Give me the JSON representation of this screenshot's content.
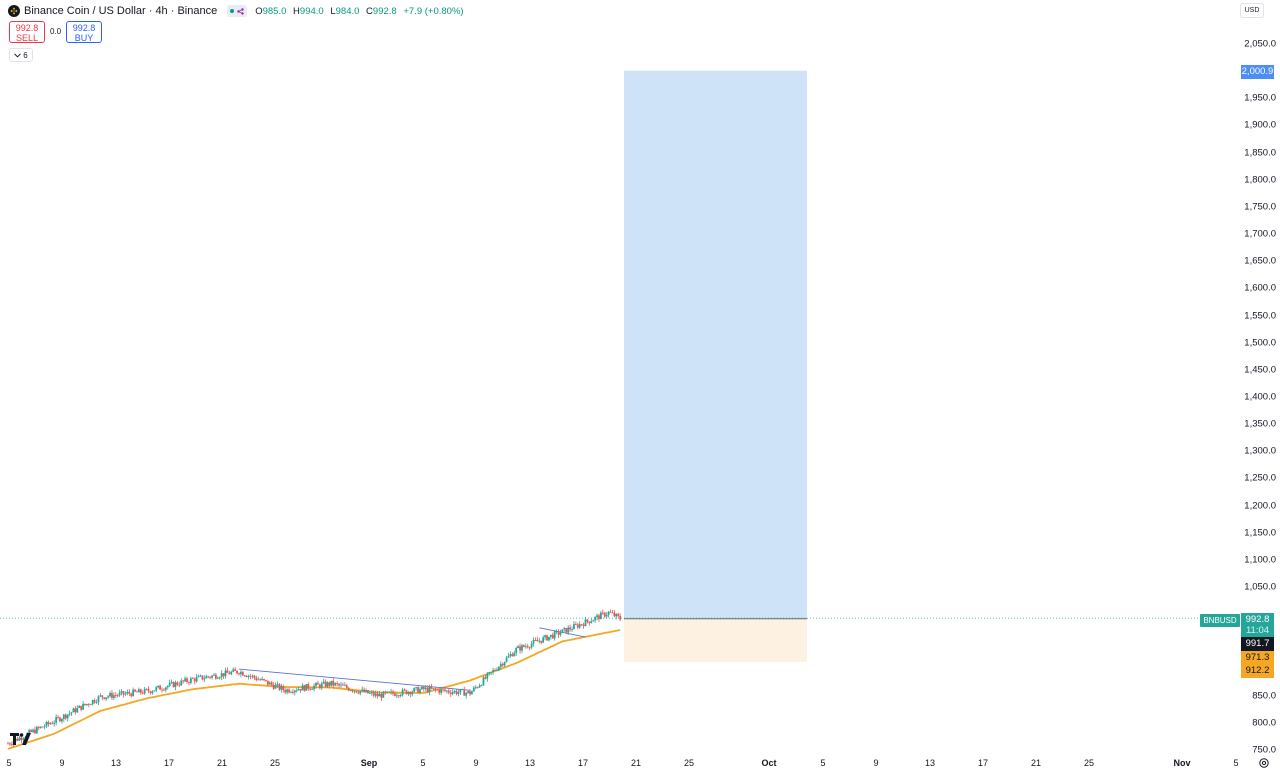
{
  "header": {
    "title": "Binance Coin / US Dollar · 4h · Binance",
    "ohlc": [
      {
        "key": "O",
        "value": "985.0"
      },
      {
        "key": "H",
        "value": "994.0"
      },
      {
        "key": "L",
        "value": "984.0"
      },
      {
        "key": "C",
        "value": "992.8"
      }
    ],
    "change": "+7.9 (+0.80%)"
  },
  "trade": {
    "sell_price": "992.8",
    "sell_label": "SELL",
    "spread": "0.0",
    "buy_price": "992.8",
    "buy_label": "BUY"
  },
  "indicators_toggle": "6",
  "currency": "USD",
  "colors": {
    "up": "#26a69a",
    "down": "#ef5350",
    "ma": "#f5a623",
    "target_zone": "#cfe3f8",
    "stop_zone": "#fdf1e1",
    "trendline": "#5b6fd6",
    "accent_blue": "#4c8df6"
  },
  "price_axis": {
    "ticks": [
      "2,050.0",
      "1,950.0",
      "1,900.0",
      "1,850.0",
      "1,800.0",
      "1,750.0",
      "1,700.0",
      "1,650.0",
      "1,600.0",
      "1,550.0",
      "1,500.0",
      "1,450.0",
      "1,400.0",
      "1,350.0",
      "1,300.0",
      "1,250.0",
      "1,200.0",
      "1,150.0",
      "1,100.0",
      "1,050.0",
      "850.0",
      "800.0",
      "750.0"
    ],
    "tick_values": [
      2050,
      1950,
      1900,
      1850,
      1800,
      1750,
      1700,
      1650,
      1600,
      1550,
      1500,
      1450,
      1400,
      1350,
      1300,
      1250,
      1200,
      1150,
      1100,
      1050,
      850,
      800,
      750
    ],
    "range": [
      750,
      2065
    ]
  },
  "price_labels": {
    "target": "2,000.9",
    "symbol": "BNBUSD",
    "last": "992.8",
    "countdown": "11:04",
    "entry": "991.7",
    "ma": "971.3",
    "stop": "912.2"
  },
  "time_axis": {
    "labels": [
      {
        "text": "5",
        "bold": false
      },
      {
        "text": "9",
        "bold": false
      },
      {
        "text": "13",
        "bold": false
      },
      {
        "text": "17",
        "bold": false
      },
      {
        "text": "21",
        "bold": false
      },
      {
        "text": "25",
        "bold": false
      },
      {
        "text": "Sep",
        "bold": true
      },
      {
        "text": "5",
        "bold": false
      },
      {
        "text": "9",
        "bold": false
      },
      {
        "text": "13",
        "bold": false
      },
      {
        "text": "17",
        "bold": false
      },
      {
        "text": "21",
        "bold": false
      },
      {
        "text": "25",
        "bold": false
      },
      {
        "text": "Oct",
        "bold": true
      },
      {
        "text": "5",
        "bold": false
      },
      {
        "text": "9",
        "bold": false
      },
      {
        "text": "13",
        "bold": false
      },
      {
        "text": "17",
        "bold": false
      },
      {
        "text": "21",
        "bold": false
      },
      {
        "text": "25",
        "bold": false
      },
      {
        "text": "Nov",
        "bold": true
      },
      {
        "text": "5",
        "bold": false
      }
    ]
  },
  "position_tool": {
    "entry": 991.7,
    "target": 2000.9,
    "stop": 912.2
  },
  "price_path": [
    {
      "day": 0,
      "price": 762
    },
    {
      "day": 4,
      "price": 803
    },
    {
      "day": 8,
      "price": 848
    },
    {
      "day": 12,
      "price": 858
    },
    {
      "day": 16,
      "price": 880
    },
    {
      "day": 20,
      "price": 895
    },
    {
      "day": 24,
      "price": 860
    },
    {
      "day": 28,
      "price": 872
    },
    {
      "day": 32,
      "price": 850
    },
    {
      "day": 36,
      "price": 862
    },
    {
      "day": 40,
      "price": 855
    },
    {
      "day": 44,
      "price": 935
    },
    {
      "day": 48,
      "price": 968
    },
    {
      "day": 52,
      "price": 1003
    },
    {
      "day": 53,
      "price": 992
    }
  ],
  "ma_path": [
    {
      "day": 0,
      "price": 752
    },
    {
      "day": 4,
      "price": 780
    },
    {
      "day": 8,
      "price": 822
    },
    {
      "day": 12,
      "price": 845
    },
    {
      "day": 16,
      "price": 862
    },
    {
      "day": 20,
      "price": 872
    },
    {
      "day": 24,
      "price": 866
    },
    {
      "day": 28,
      "price": 865
    },
    {
      "day": 32,
      "price": 856
    },
    {
      "day": 36,
      "price": 855
    },
    {
      "day": 40,
      "price": 878
    },
    {
      "day": 44,
      "price": 910
    },
    {
      "day": 48,
      "price": 950
    },
    {
      "day": 53,
      "price": 971
    }
  ],
  "trendlines": [
    {
      "from": {
        "day": 20,
        "price": 899
      },
      "to": {
        "day": 40,
        "price": 860
      }
    },
    {
      "from": {
        "day": 46,
        "price": 975
      },
      "to": {
        "day": 50,
        "price": 958
      }
    }
  ]
}
